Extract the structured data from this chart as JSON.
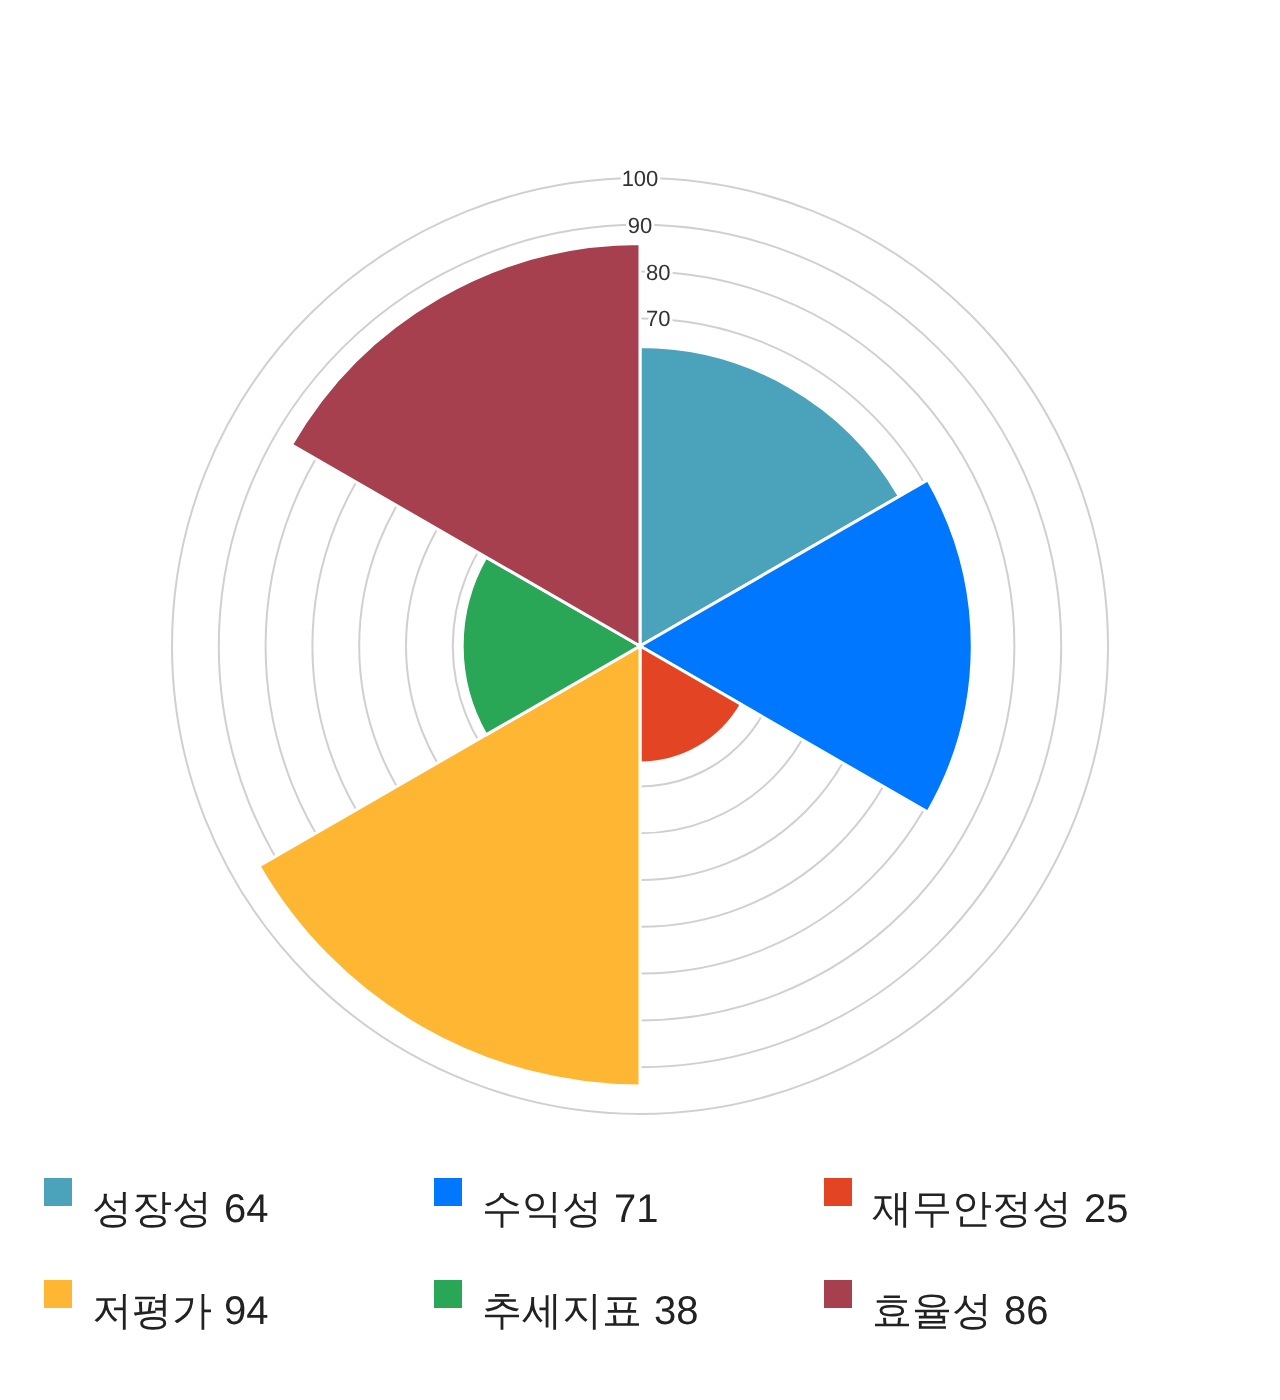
{
  "chart_data": {
    "type": "other",
    "categories": [
      "성장성",
      "수익성",
      "재무안정성",
      "저평가",
      "추세지표",
      "효율성"
    ],
    "values": [
      64,
      71,
      25,
      94,
      38,
      86
    ],
    "colors": [
      "#4aa3ba",
      "#0077ff",
      "#e34423",
      "#ffb632",
      "#2aa756",
      "#a6404e"
    ],
    "data_labels": true,
    "annotations": [
      "100",
      "90",
      "80",
      "70"
    ]
  }
}
